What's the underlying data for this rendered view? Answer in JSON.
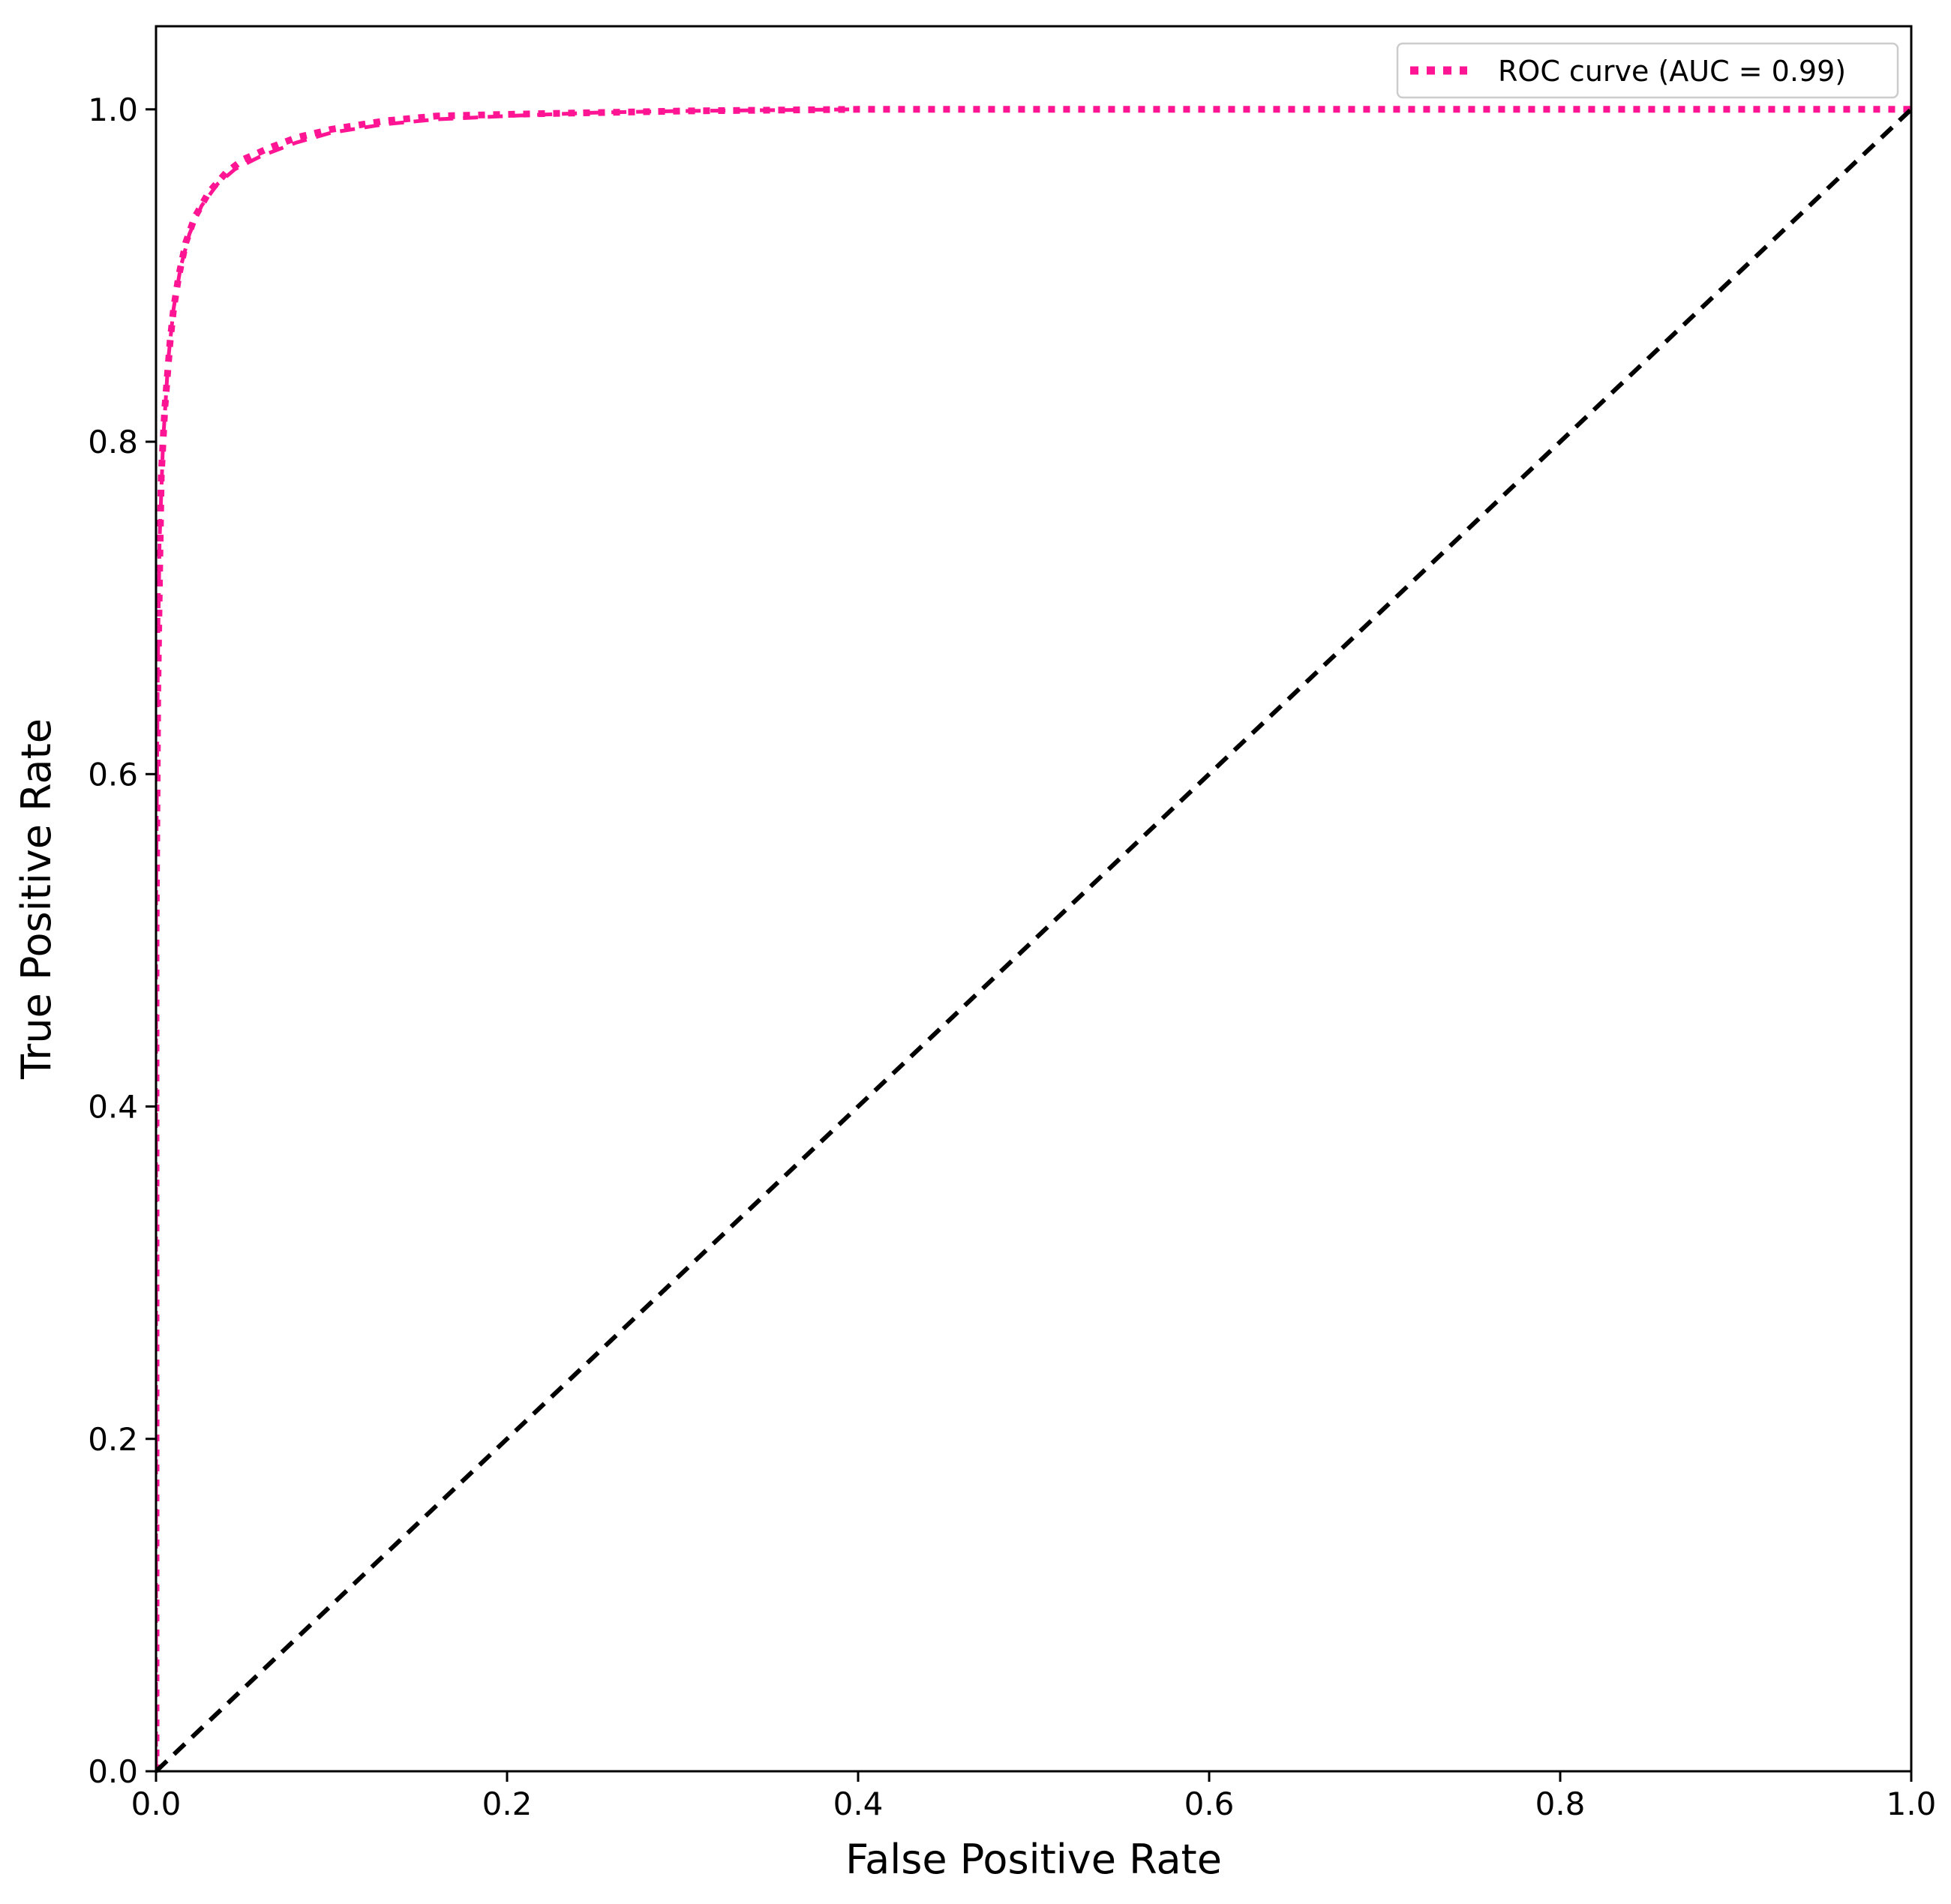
{
  "chart_data": {
    "type": "line",
    "title": "",
    "xlabel": "False Positive Rate",
    "ylabel": "True Positive Rate",
    "xlim": [
      0.0,
      1.0
    ],
    "ylim": [
      0.0,
      1.05
    ],
    "x_ticks": [
      0.0,
      0.2,
      0.4,
      0.6,
      0.8,
      1.0
    ],
    "x_tick_labels": [
      "0.0",
      "0.2",
      "0.4",
      "0.6",
      "0.8",
      "1.0"
    ],
    "y_ticks": [
      0.0,
      0.2,
      0.4,
      0.6,
      0.8,
      1.0
    ],
    "y_tick_labels": [
      "0.0",
      "0.2",
      "0.4",
      "0.6",
      "0.8",
      "1.0"
    ],
    "grid": false,
    "legend_position": "top-right",
    "series": [
      {
        "name": "ROC curve (AUC = 0.99)",
        "color": "#ff1493",
        "line_style": "dotted",
        "in_legend": true,
        "x": [
          0.0,
          0.0,
          0.001,
          0.002,
          0.003,
          0.005,
          0.008,
          0.01,
          0.013,
          0.017,
          0.022,
          0.03,
          0.04,
          0.05,
          0.065,
          0.08,
          0.1,
          0.13,
          0.16,
          0.2,
          0.25,
          0.3,
          0.4,
          0.5,
          0.6,
          0.8,
          1.0
        ],
        "y": [
          0.0,
          0.5,
          0.65,
          0.72,
          0.78,
          0.82,
          0.86,
          0.88,
          0.9,
          0.92,
          0.935,
          0.95,
          0.962,
          0.97,
          0.977,
          0.983,
          0.988,
          0.993,
          0.996,
          0.997,
          0.998,
          0.999,
          1.0,
          1.0,
          1.0,
          1.0,
          1.0
        ]
      },
      {
        "color": "#ff1493",
        "line_style": "dashed",
        "in_legend": false,
        "x": [
          0.0,
          0.0,
          0.001,
          0.002,
          0.004,
          0.007,
          0.01,
          0.014,
          0.019,
          0.026,
          0.035,
          0.045,
          0.06,
          0.08,
          0.1,
          0.13,
          0.16,
          0.2,
          0.25,
          0.3,
          0.4
        ],
        "y": [
          0.0,
          0.52,
          0.66,
          0.74,
          0.8,
          0.85,
          0.88,
          0.905,
          0.925,
          0.942,
          0.955,
          0.964,
          0.972,
          0.98,
          0.986,
          0.991,
          0.994,
          0.996,
          0.998,
          0.999,
          1.0
        ]
      },
      {
        "color": "#000000",
        "line_style": "dashed",
        "in_legend": false,
        "x": [
          0.0,
          1.0
        ],
        "y": [
          0.0,
          1.0
        ]
      }
    ]
  }
}
